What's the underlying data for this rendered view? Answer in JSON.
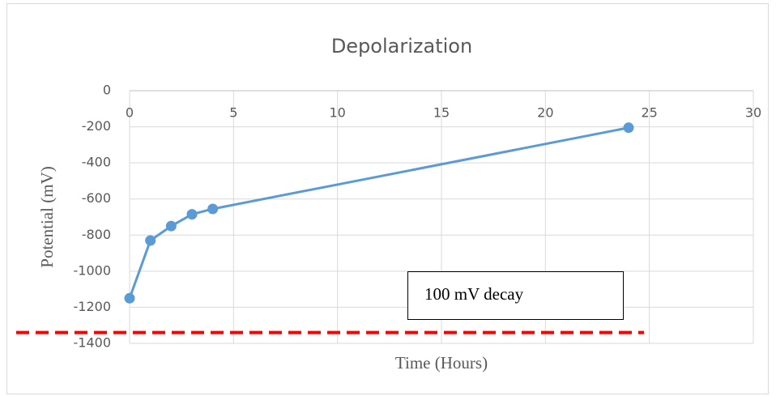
{
  "chart_data": {
    "type": "line",
    "title": "Depolarization",
    "x_label": "Time (Hours)",
    "y_label": "Potential (mV)",
    "x": [
      0,
      1,
      2,
      3,
      4,
      24
    ],
    "series": [
      {
        "name": "Potential",
        "color": "#5b9bd5",
        "values": [
          -1150,
          -830,
          -750,
          -685,
          -655,
          -205
        ]
      }
    ],
    "xlim": [
      0,
      30
    ],
    "xticks": [
      0,
      5,
      10,
      15,
      20,
      25,
      30
    ],
    "ylim": [
      -1400,
      0
    ],
    "yticks": [
      0,
      -200,
      -400,
      -600,
      -800,
      -1000,
      -1200,
      -1400
    ],
    "grid": true,
    "annotation": "100 mV decay",
    "reference_line": {
      "value": -1340,
      "color": "#ff0000"
    }
  }
}
